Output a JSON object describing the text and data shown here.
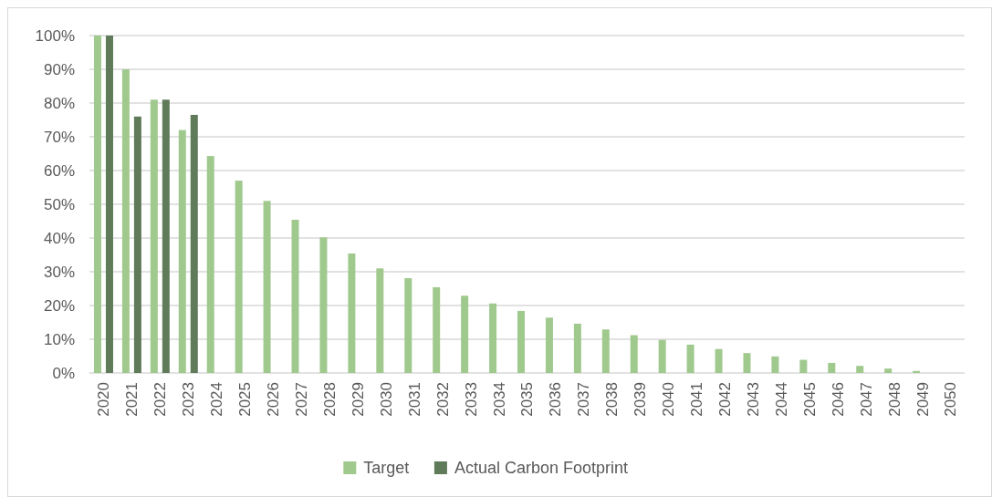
{
  "chart_data": {
    "type": "bar",
    "categories": [
      "2020",
      "2021",
      "2022",
      "2023",
      "2024",
      "2025",
      "2026",
      "2027",
      "2028",
      "2029",
      "2030",
      "2031",
      "2032",
      "2033",
      "2034",
      "2035",
      "2036",
      "2037",
      "2038",
      "2039",
      "2040",
      "2041",
      "2042",
      "2043",
      "2044",
      "2045",
      "2046",
      "2047",
      "2048",
      "2049",
      "2050"
    ],
    "series": [
      {
        "name": "Target",
        "color": "#a0c98e",
        "values": [
          100,
          90,
          81,
          72,
          64.3,
          57,
          51,
          45.4,
          40.2,
          35.4,
          31,
          28.1,
          25.4,
          22.9,
          20.6,
          18.4,
          16.4,
          14.6,
          12.9,
          11.2,
          9.8,
          8.4,
          7.1,
          5.9,
          4.9,
          3.9,
          3.0,
          2.1,
          1.3,
          0.6,
          0
        ]
      },
      {
        "name": "Actual Carbon Footprint",
        "color": "#5f7b59",
        "values": [
          100,
          76,
          81,
          76.5,
          null,
          null,
          null,
          null,
          null,
          null,
          null,
          null,
          null,
          null,
          null,
          null,
          null,
          null,
          null,
          null,
          null,
          null,
          null,
          null,
          null,
          null,
          null,
          null,
          null,
          null,
          null
        ]
      }
    ],
    "ylim": [
      0,
      100
    ],
    "yticks": [
      {
        "value": 0,
        "label": "0%"
      },
      {
        "value": 10,
        "label": "10%"
      },
      {
        "value": 20,
        "label": "20%"
      },
      {
        "value": 30,
        "label": "30%"
      },
      {
        "value": 40,
        "label": "40%"
      },
      {
        "value": 50,
        "label": "50%"
      },
      {
        "value": 60,
        "label": "60%"
      },
      {
        "value": 70,
        "label": "70%"
      },
      {
        "value": 80,
        "label": "80%"
      },
      {
        "value": 90,
        "label": "90%"
      },
      {
        "value": 100,
        "label": "100%"
      }
    ],
    "grid": "y",
    "legend": "bottom"
  }
}
